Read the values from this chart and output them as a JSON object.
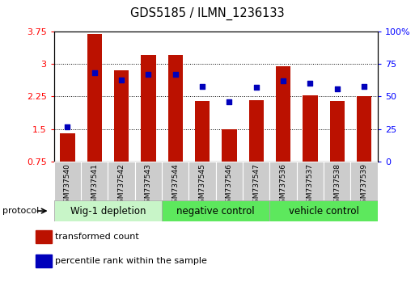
{
  "title": "GDS5185 / ILMN_1236133",
  "samples": [
    "GSM737540",
    "GSM737541",
    "GSM737542",
    "GSM737543",
    "GSM737544",
    "GSM737545",
    "GSM737546",
    "GSM737547",
    "GSM737536",
    "GSM737537",
    "GSM737538",
    "GSM737539"
  ],
  "bar_values": [
    1.4,
    3.7,
    2.85,
    3.2,
    3.2,
    2.15,
    1.5,
    2.17,
    2.95,
    2.28,
    2.15,
    2.25
  ],
  "dot_values": [
    27,
    68,
    63,
    67,
    67,
    58,
    46,
    57,
    62,
    60,
    56,
    58
  ],
  "groups": [
    {
      "label": "Wig-1 depletion",
      "start": 0,
      "end": 4,
      "color": "#c8f5c8"
    },
    {
      "label": "negative control",
      "start": 4,
      "end": 8,
      "color": "#5de85d"
    },
    {
      "label": "vehicle control",
      "start": 8,
      "end": 12,
      "color": "#5de85d"
    }
  ],
  "ylim_left": [
    0.75,
    3.75
  ],
  "yticks_left": [
    0.75,
    1.5,
    2.25,
    3.0,
    3.75
  ],
  "ytick_labels_left": [
    "0.75",
    "1.5",
    "2.25",
    "3",
    "3.75"
  ],
  "ylim_right": [
    0,
    100
  ],
  "yticks_right": [
    0,
    25,
    50,
    75,
    100
  ],
  "ytick_labels_right": [
    "0",
    "25",
    "50",
    "75",
    "100%"
  ],
  "bar_color": "#bb1100",
  "dot_color": "#0000bb",
  "bar_width": 0.55,
  "background_color": "#ffffff"
}
